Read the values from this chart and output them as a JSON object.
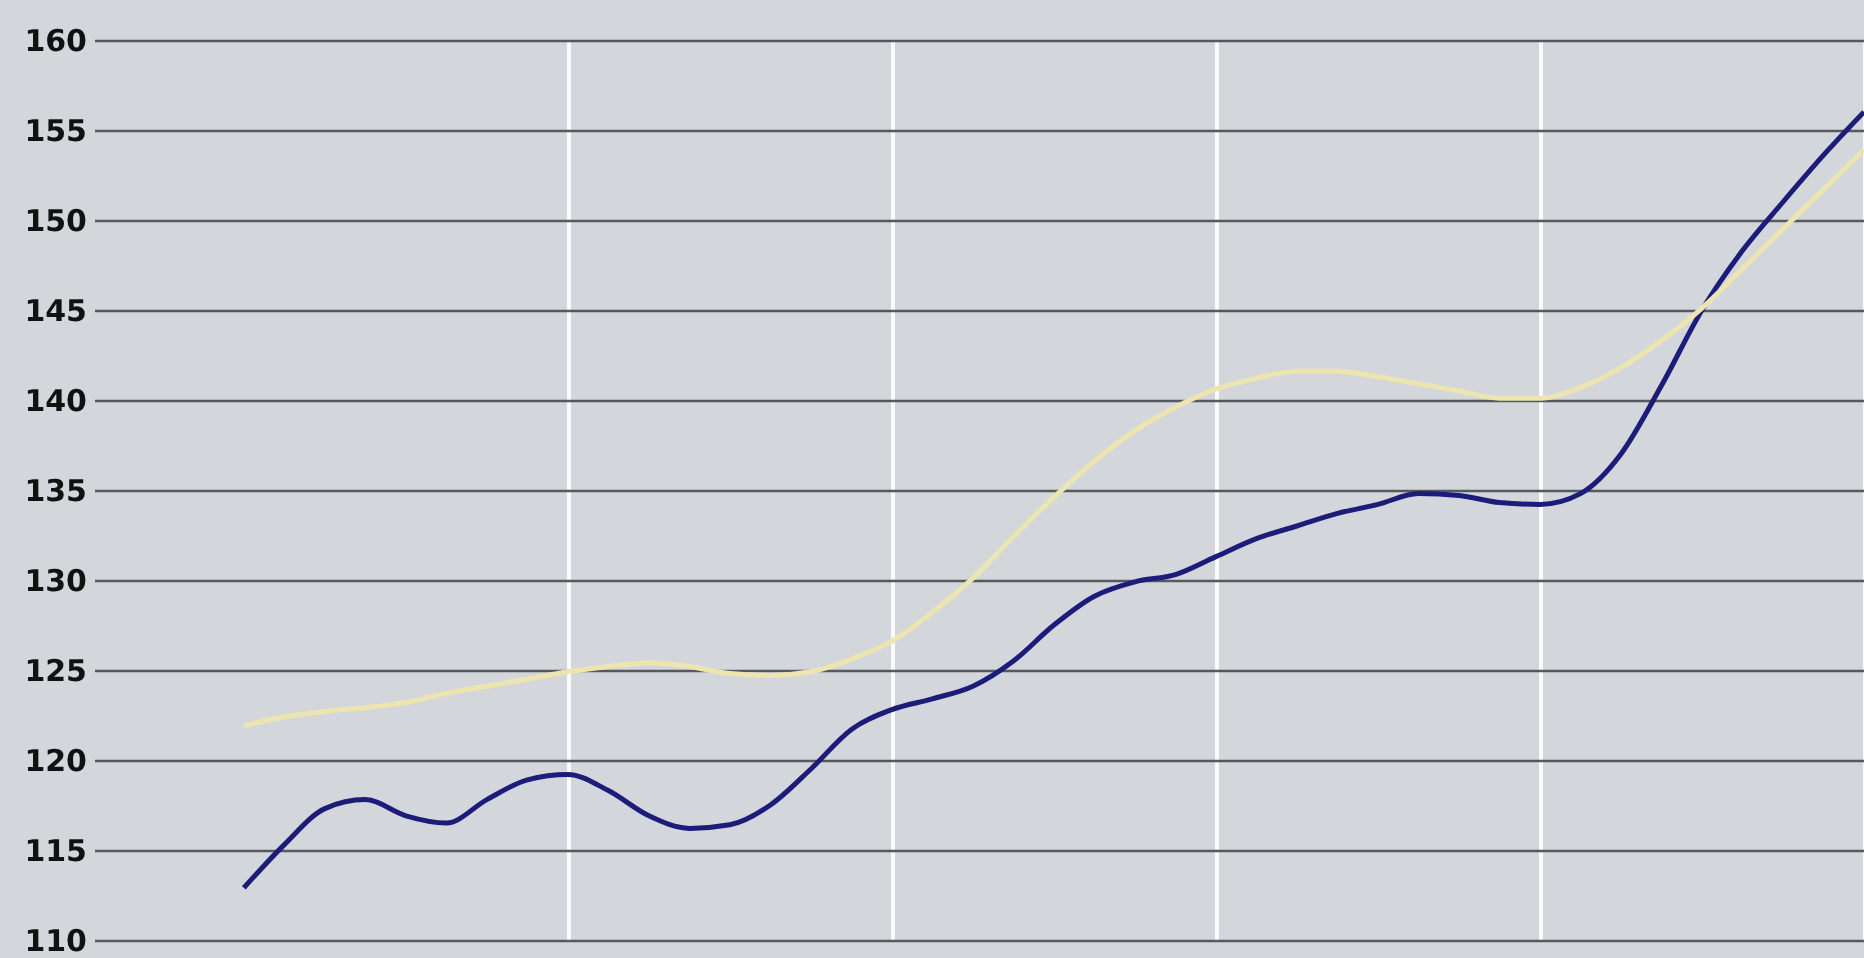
{
  "chart_data": {
    "type": "line",
    "categories": [
      null,
      null,
      null,
      null,
      null,
      null,
      null,
      null,
      null,
      null,
      null,
      null,
      null,
      null,
      null,
      null,
      null,
      null,
      null,
      null,
      null,
      null,
      null,
      null,
      null,
      null,
      null,
      null,
      null,
      null,
      null,
      null,
      null,
      null,
      null,
      null,
      null,
      null,
      null,
      null,
      null
    ],
    "series": [
      {
        "color": "#1c1c7a",
        "values": [
          112.9,
          115.3,
          117.3,
          117.8,
          116.9,
          116.5,
          117.8,
          118.9,
          119.2,
          118.3,
          116.9,
          116.2,
          116.4,
          117.5,
          119.5,
          121.7,
          122.8,
          123.4,
          124.1,
          125.5,
          127.5,
          129.1,
          129.9,
          130.3,
          131.3,
          132.3,
          133,
          133.7,
          134.2,
          134.8,
          134.7,
          134.3,
          134.2,
          134.8,
          137,
          140.8,
          145,
          148.3,
          151,
          153.6,
          156
        ]
      },
      {
        "color": "#ece5b0",
        "values": [
          121.9,
          122.4,
          122.7,
          122.9,
          123.2,
          123.7,
          124.1,
          124.5,
          124.9,
          125.2,
          125.4,
          125.2,
          124.8,
          124.7,
          124.9,
          125.6,
          126.6,
          128.2,
          130.1,
          132.4,
          134.6,
          136.6,
          138.3,
          139.6,
          140.6,
          141.2,
          141.6,
          141.6,
          141.3,
          140.9,
          140.5,
          140.1,
          140.1,
          140.7,
          141.8,
          143.3,
          145.1,
          147.3,
          149.5,
          151.7,
          153.9
        ]
      }
    ],
    "ylim": [
      110,
      160
    ],
    "yticks": [
      110,
      115,
      120,
      125,
      130,
      135,
      140,
      145,
      150,
      155,
      160
    ],
    "grid": true,
    "legend": false
  }
}
